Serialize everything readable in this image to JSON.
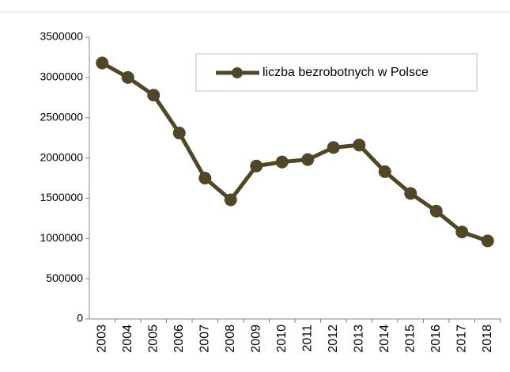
{
  "chart_data": {
    "type": "line",
    "categories": [
      "2003",
      "2004",
      "2005",
      "2006",
      "2007",
      "2008",
      "2009",
      "2010",
      "2011",
      "2012",
      "2013",
      "2014",
      "2015",
      "2016",
      "2017",
      "2018"
    ],
    "series": [
      {
        "name": "liczba bezrobotnych w Polsce",
        "color": "#4f4728",
        "values": [
          3180000,
          3000000,
          2780000,
          2310000,
          1750000,
          1480000,
          1900000,
          1950000,
          1980000,
          2130000,
          2160000,
          1830000,
          1560000,
          1340000,
          1080000,
          970000
        ]
      }
    ],
    "ylim": [
      0,
      3500000
    ],
    "yticks": [
      0,
      500000,
      1000000,
      1500000,
      2000000,
      2500000,
      3000000,
      3500000
    ],
    "grid": false,
    "legend": "top-right"
  }
}
